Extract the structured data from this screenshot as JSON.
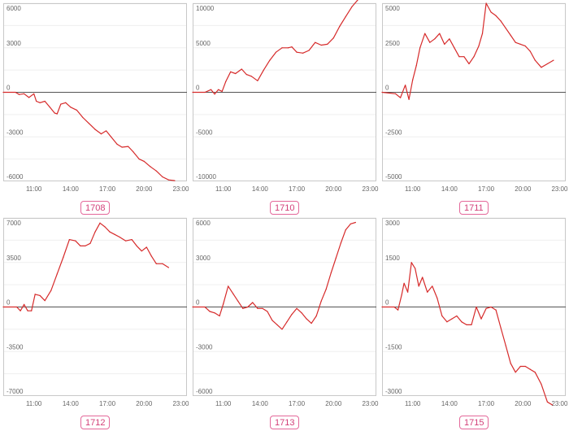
{
  "theme": {
    "line_color": "#d62a2a",
    "frame_color": "#c8c8c8",
    "grid_color": "#efefef",
    "zero_color": "#555555",
    "tick_color": "#666666",
    "tag_color": "#d23f78"
  },
  "chart_data": [
    {
      "type": "line",
      "label": "1708",
      "x_ticks": [
        "11:00",
        "14:00",
        "17:00",
        "20:00",
        "23:00"
      ],
      "x_tick_hours": [
        11,
        14,
        17,
        20,
        23
      ],
      "xlim": [
        8.5,
        23.5
      ],
      "y_ticks": [
        "6000",
        "3000",
        "0",
        "-3000",
        "-6000"
      ],
      "y_tick_values": [
        6000,
        3000,
        0,
        -3000,
        -6000
      ],
      "ylim": [
        -6000,
        6000
      ],
      "series": [
        {
          "x": [
            8.5,
            9.5,
            9.8,
            10.2,
            10.6,
            11.0,
            11.2,
            11.5,
            11.9,
            12.3,
            12.7,
            12.9,
            13.2,
            13.6,
            14.0,
            14.5,
            15.0,
            15.5,
            16.0,
            16.5,
            16.9,
            17.3,
            17.8,
            18.2,
            18.7,
            19.1,
            19.6,
            20.0,
            20.5,
            21.0,
            21.5,
            22.0,
            22.5
          ],
          "y": [
            0,
            0,
            -150,
            -100,
            -350,
            -100,
            -600,
            -700,
            -600,
            -1000,
            -1400,
            -1450,
            -800,
            -700,
            -1000,
            -1200,
            -1700,
            -2100,
            -2500,
            -2800,
            -2600,
            -3000,
            -3500,
            -3700,
            -3650,
            -4000,
            -4500,
            -4650,
            -5000,
            -5300,
            -5700,
            -5900,
            -5950
          ]
        }
      ]
    },
    {
      "type": "line",
      "label": "1710",
      "x_ticks": [
        "11:00",
        "14:00",
        "17:00",
        "20:00",
        "23:00"
      ],
      "x_tick_hours": [
        11,
        14,
        17,
        20,
        23
      ],
      "xlim": [
        8.5,
        23.5
      ],
      "y_ticks": [
        "10000",
        "5000",
        "0",
        "-5000",
        "-10000"
      ],
      "y_tick_values": [
        10000,
        5000,
        0,
        -5000,
        -10000
      ],
      "ylim": [
        -10000,
        10000
      ],
      "series": [
        {
          "x": [
            8.5,
            9.5,
            10.0,
            10.3,
            10.6,
            10.9,
            11.2,
            11.6,
            12.0,
            12.5,
            12.9,
            13.3,
            13.8,
            14.3,
            14.8,
            15.3,
            15.8,
            16.3,
            16.6,
            17.0,
            17.5,
            18.0,
            18.5,
            19.0,
            19.5,
            20.0,
            20.5,
            21.0,
            21.5,
            22.0
          ],
          "y": [
            0,
            0,
            300,
            -200,
            300,
            100,
            1200,
            2300,
            2100,
            2600,
            2000,
            1800,
            1300,
            2500,
            3600,
            4500,
            5000,
            5000,
            5100,
            4500,
            4400,
            4700,
            5600,
            5300,
            5400,
            6100,
            7400,
            8500,
            9600,
            10400
          ]
        }
      ]
    },
    {
      "type": "line",
      "label": "1711",
      "x_ticks": [
        "11:00",
        "14:00",
        "17:00",
        "20:00",
        "23:00"
      ],
      "x_tick_hours": [
        11,
        14,
        17,
        20,
        23
      ],
      "xlim": [
        8.5,
        23.5
      ],
      "y_ticks": [
        "5000",
        "2500",
        "0",
        "-2500",
        "-5000"
      ],
      "y_tick_values": [
        5000,
        2500,
        0,
        -2500,
        -5000
      ],
      "ylim": [
        -5000,
        5000
      ],
      "series": [
        {
          "x": [
            8.5,
            9.6,
            10.0,
            10.4,
            10.7,
            11.0,
            11.3,
            11.6,
            12.0,
            12.4,
            12.8,
            13.2,
            13.6,
            14.0,
            14.4,
            14.8,
            15.2,
            15.6,
            16.0,
            16.4,
            16.7,
            17.0,
            17.4,
            17.8,
            18.2,
            18.6,
            19.0,
            19.4,
            19.8,
            20.2,
            20.6,
            21.0,
            21.5,
            22.0,
            22.5
          ],
          "y": [
            0,
            -80,
            -300,
            400,
            -400,
            700,
            1500,
            2500,
            3300,
            2800,
            3000,
            3300,
            2700,
            3000,
            2500,
            2000,
            2000,
            1600,
            2000,
            2600,
            3300,
            5000,
            4500,
            4300,
            4000,
            3600,
            3200,
            2800,
            2700,
            2600,
            2300,
            1800,
            1400,
            1600,
            1800
          ]
        }
      ]
    },
    {
      "type": "line",
      "label": "1712",
      "x_ticks": [
        "11:00",
        "14:00",
        "17:00",
        "20:00",
        "23:00"
      ],
      "x_tick_hours": [
        11,
        14,
        17,
        20,
        23
      ],
      "xlim": [
        8.5,
        23.5
      ],
      "y_ticks": [
        "7000",
        "3500",
        "0",
        "-3500",
        "-7000"
      ],
      "y_tick_values": [
        7000,
        3500,
        0,
        -3500,
        -7000
      ],
      "ylim": [
        -7000,
        7000
      ],
      "series": [
        {
          "x": [
            8.5,
            9.6,
            9.9,
            10.2,
            10.5,
            10.8,
            11.1,
            11.5,
            11.9,
            12.4,
            12.9,
            13.4,
            13.9,
            14.4,
            14.8,
            15.2,
            15.6,
            16.0,
            16.4,
            16.8,
            17.2,
            17.6,
            18.0,
            18.5,
            19.0,
            19.4,
            19.8,
            20.2,
            20.6,
            21.0,
            21.5,
            22.0
          ],
          "y": [
            0,
            0,
            -300,
            200,
            -300,
            -300,
            1000,
            900,
            500,
            1300,
            2600,
            3900,
            5300,
            5200,
            4800,
            4800,
            5000,
            5900,
            6600,
            6300,
            5900,
            5700,
            5500,
            5200,
            5300,
            4800,
            4400,
            4700,
            4000,
            3400,
            3400,
            3100
          ]
        }
      ]
    },
    {
      "type": "line",
      "label": "1713",
      "x_ticks": [
        "11:00",
        "14:00",
        "17:00",
        "20:00",
        "23:00"
      ],
      "x_tick_hours": [
        11,
        14,
        17,
        20,
        23
      ],
      "xlim": [
        8.5,
        23.5
      ],
      "y_ticks": [
        "6000",
        "3000",
        "0",
        "-3000",
        "-6000"
      ],
      "y_tick_values": [
        6000,
        3000,
        0,
        -3000,
        -6000
      ],
      "ylim": [
        -6000,
        6000
      ],
      "series": [
        {
          "x": [
            8.5,
            9.5,
            9.9,
            10.3,
            10.7,
            11.0,
            11.4,
            11.8,
            12.2,
            12.6,
            13.0,
            13.4,
            13.8,
            14.2,
            14.6,
            15.0,
            15.4,
            15.8,
            16.2,
            16.6,
            17.0,
            17.4,
            17.8,
            18.2,
            18.6,
            19.0,
            19.4,
            19.8,
            20.2,
            20.6,
            21.0,
            21.4,
            21.8
          ],
          "y": [
            0,
            0,
            -300,
            -400,
            -600,
            200,
            1400,
            900,
            400,
            -100,
            0,
            300,
            -100,
            -100,
            -300,
            -900,
            -1200,
            -1500,
            -1000,
            -500,
            -100,
            -400,
            -800,
            -1100,
            -600,
            400,
            1200,
            2300,
            3300,
            4300,
            5200,
            5600,
            5700
          ]
        }
      ]
    },
    {
      "type": "line",
      "label": "1715",
      "x_ticks": [
        "11:00",
        "14:00",
        "17:00",
        "20:00",
        "23:00"
      ],
      "x_tick_hours": [
        11,
        14,
        17,
        20,
        23
      ],
      "xlim": [
        8.5,
        23.5
      ],
      "y_ticks": [
        "3000",
        "1500",
        "0",
        "-1500",
        "-3000"
      ],
      "y_tick_values": [
        3000,
        1500,
        0,
        -1500,
        -3000
      ],
      "ylim": [
        -3000,
        3000
      ],
      "series": [
        {
          "x": [
            8.5,
            9.5,
            9.8,
            10.1,
            10.3,
            10.6,
            10.9,
            11.2,
            11.5,
            11.8,
            12.2,
            12.6,
            13.0,
            13.4,
            13.8,
            14.2,
            14.6,
            15.0,
            15.4,
            15.8,
            16.2,
            16.6,
            17.0,
            17.4,
            17.8,
            18.2,
            18.6,
            19.0,
            19.4,
            19.8,
            20.2,
            20.6,
            21.0,
            21.5,
            22.0,
            22.4
          ],
          "y": [
            0,
            0,
            -100,
            400,
            800,
            500,
            1500,
            1300,
            700,
            1000,
            500,
            700,
            300,
            -300,
            -500,
            -400,
            -300,
            -500,
            -600,
            -600,
            0,
            -400,
            -50,
            0,
            -100,
            -700,
            -1300,
            -1900,
            -2200,
            -2000,
            -2000,
            -2100,
            -2200,
            -2600,
            -3200,
            -3300
          ]
        }
      ]
    }
  ]
}
